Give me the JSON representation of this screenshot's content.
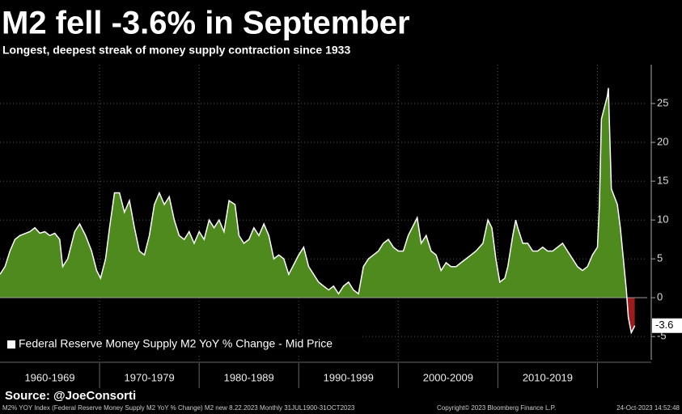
{
  "chart_data": {
    "type": "area",
    "title": "M2 fell -3.6% in September",
    "subtitle": "Longest, deepest streak of money supply contraction since 1933",
    "source": "Source: @JoeConsorti",
    "footer_left": "M2% YOY Index (Federal Reserve Money Supply M2 YoY % Change) M2 new 8.22.2023  Monthly 31JUL1900-31OCT2023",
    "footer_center": "Copyright© 2023 Bloomberg Finance L.P.",
    "footer_right": "24-Oct-2023 14:52:48",
    "categories": [
      "1960-1969",
      "1970-1979",
      "1980-1989",
      "1990-1999",
      "2000-2009",
      "2010-2019"
    ],
    "xlim": [
      1960,
      2025
    ],
    "xticks": [
      1970,
      1980,
      1990,
      2000,
      2010,
      2020
    ],
    "ylim": [
      -8,
      30
    ],
    "yticks": [
      25,
      20,
      15,
      10,
      5,
      0,
      -5
    ],
    "grid": true,
    "legend": "lower left",
    "positive_color": "#4e8a1e",
    "negative_color": "#9e1b1b",
    "line_color": "#ffffff",
    "x": [
      1960,
      1960.5,
      1961,
      1961.5,
      1962,
      1963,
      1963.5,
      1964,
      1964.5,
      1965,
      1965.5,
      1966,
      1966.3,
      1966.8,
      1967.5,
      1968,
      1968.6,
      1969.2,
      1969.7,
      1970.1,
      1970.6,
      1971,
      1971.5,
      1972,
      1972.5,
      1973,
      1973.5,
      1974,
      1974.5,
      1975,
      1975.5,
      1976,
      1976.5,
      1977,
      1977.5,
      1978,
      1978.5,
      1979,
      1979.5,
      1980,
      1980.5,
      1981,
      1981.5,
      1982,
      1982.5,
      1983,
      1983.6,
      1984,
      1984.5,
      1985,
      1985.5,
      1986,
      1986.5,
      1987,
      1987.5,
      1988,
      1988.5,
      1989,
      1990,
      1990.5,
      1991,
      1991.5,
      1992,
      1992.5,
      1993,
      1993.5,
      1994,
      1994.5,
      1995,
      1995.5,
      1996,
      1996.5,
      1997,
      1997.5,
      1998,
      1998.5,
      1999,
      1999.5,
      2000,
      2000.5,
      2001,
      2001.9,
      2002.3,
      2002.8,
      2003.3,
      2003.8,
      2004.3,
      2004.8,
      2005.3,
      2005.8,
      2006.3,
      2006.8,
      2007.3,
      2007.8,
      2008.5,
      2009,
      2009.4,
      2009.8,
      2010.2,
      2010.7,
      2011,
      2011.5,
      2011.8,
      2012,
      2012.5,
      2013,
      2013.5,
      2014,
      2014.5,
      2015,
      2015.5,
      2016,
      2016.5,
      2017,
      2017.5,
      2018,
      2018.5,
      2019,
      2019.5,
      2020,
      2020.2,
      2020.4,
      2021,
      2021.1,
      2021.4,
      2021.7,
      2022,
      2022.3,
      2022.6,
      2022.9,
      2023.1,
      2023.4,
      2023.6,
      2023.75
    ],
    "series": [
      {
        "name": "Federal Reserve Money Supply M2 YoY % Change - Mid Price",
        "values": [
          3,
          4,
          6,
          7.5,
          8,
          8.5,
          9,
          8.3,
          8.5,
          8,
          8.3,
          7.5,
          4,
          5,
          8.5,
          9.5,
          8,
          6,
          3.5,
          2.5,
          5,
          9,
          13.5,
          13.5,
          11,
          12.5,
          9,
          6,
          5.5,
          8,
          12,
          13.5,
          12,
          13,
          10,
          8,
          7.5,
          8.5,
          7,
          8.5,
          7.5,
          10,
          9,
          10,
          8.5,
          12.5,
          12,
          8,
          7,
          7.5,
          9,
          8,
          9.5,
          8,
          5,
          5.5,
          5,
          3,
          5.5,
          6.5,
          4,
          3,
          2,
          1.5,
          1,
          1.5,
          0.5,
          1.5,
          2,
          1,
          0.5,
          4,
          5,
          5.5,
          6,
          7,
          7.5,
          6.5,
          6,
          6,
          8,
          10.3,
          7,
          8,
          6,
          5.5,
          3.5,
          4.5,
          4,
          4,
          4.5,
          5,
          5.5,
          6,
          7,
          10,
          9,
          5,
          2,
          2.5,
          4,
          8,
          10,
          9,
          7,
          7,
          6,
          6,
          6.5,
          6,
          6,
          6.5,
          7,
          6,
          5,
          4,
          3.5,
          4,
          5.5,
          6.5,
          12,
          23,
          26,
          27,
          14,
          13,
          12,
          9,
          5,
          1,
          -2.5,
          -4.5,
          -4,
          -3.6
        ]
      }
    ]
  }
}
